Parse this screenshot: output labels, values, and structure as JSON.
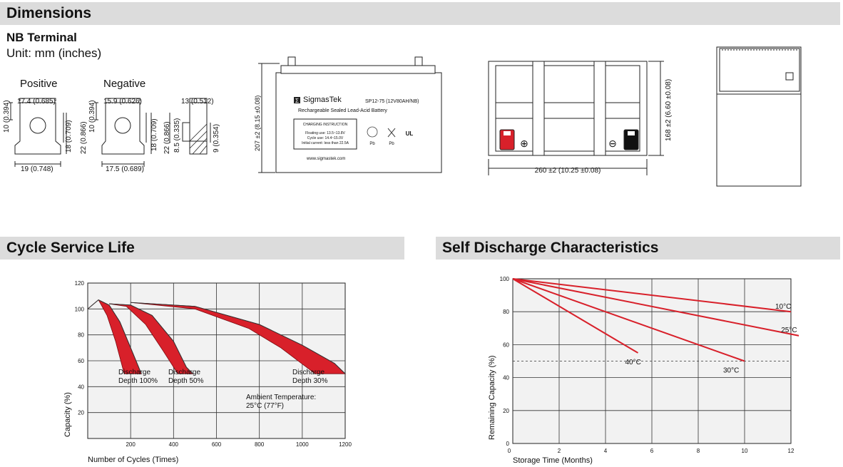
{
  "sections": {
    "dimensions": "Dimensions",
    "cycle": "Cycle Service Life",
    "self_discharge": "Self Discharge Characteristics"
  },
  "terminal": {
    "title": "NB Terminal",
    "unit": "Unit: mm (inches)",
    "positive": "Positive",
    "negative": "Negative",
    "pos_top": "17.4 (0.685)",
    "pos_left": "10 (0.394)",
    "pos_right1": "18 (0.709)",
    "pos_right2": "22 (0.866)",
    "pos_bottom": "19 (0.748)",
    "neg_top": "15.9 (0.626)",
    "neg_left": "10 (0.394)",
    "neg_right1": "18 (0.709)",
    "neg_right2": "22 (0.866)",
    "neg_right3": "8.5 (0.335)",
    "neg_bottom": "17.5 (0.689)",
    "side_top": "13 (0.512)",
    "side_right": "9 (0.354)"
  },
  "battery": {
    "brand": "SigmasTek",
    "model": "SP12-75 (12V80AH/NB)",
    "subtitle": "Rechargeable Sealed Lead-Acid Battery",
    "charging_title": "CHARGING INSTRUCTION",
    "floating": "Floating use: 13.5~13.8V",
    "cycle_use": "Cycle use: 14.4~15.0V",
    "initial": "Initial current: less than 22.5A",
    "website": "www.sigmastek.com",
    "height_label": "207 ±2 (8.15 ±0.08)",
    "top_height_label": "168 ±2 (6.60 ±0.08)",
    "width_label": "260 ±2 (10.25 ±0.08)",
    "pb1": "Pb",
    "pb2": "Pb",
    "ul": "UL",
    "plus": "⊕",
    "minus": "⊖"
  },
  "chart_data": [
    {
      "type": "area",
      "title": "Cycle Service Life",
      "xlabel": "Number of Cycles (Times)",
      "ylabel": "Capacity (%)",
      "xlim": [
        0,
        1200
      ],
      "ylim": [
        0,
        120
      ],
      "x_ticks": [
        "200",
        "400",
        "600",
        "800",
        "1000",
        "1200"
      ],
      "y_ticks": [
        "20",
        "40",
        "60",
        "80",
        "100",
        "120"
      ],
      "grid": true,
      "series": [
        {
          "name": "Discharge Depth 100%",
          "band_upper": [
            [
              0,
              100
            ],
            [
              50,
              107
            ],
            [
              100,
              103
            ],
            [
              150,
              90
            ],
            [
              200,
              70
            ],
            [
              250,
              50
            ]
          ],
          "band_lower": [
            [
              0,
              100
            ],
            [
              50,
              107
            ],
            [
              90,
              95
            ],
            [
              130,
              75
            ],
            [
              170,
              50
            ]
          ]
        },
        {
          "name": "Discharge Depth 50%",
          "band_upper": [
            [
              100,
              104
            ],
            [
              200,
              103
            ],
            [
              300,
              95
            ],
            [
              400,
              75
            ],
            [
              460,
              55
            ],
            [
              490,
              50
            ]
          ],
          "band_lower": [
            [
              100,
              104
            ],
            [
              180,
              102
            ],
            [
              270,
              88
            ],
            [
              350,
              68
            ],
            [
              420,
              50
            ]
          ]
        },
        {
          "name": "Discharge Depth 30%",
          "band_upper": [
            [
              200,
              105
            ],
            [
              500,
              102
            ],
            [
              800,
              88
            ],
            [
              1000,
              72
            ],
            [
              1150,
              58
            ],
            [
              1200,
              50
            ]
          ],
          "band_lower": [
            [
              200,
              105
            ],
            [
              500,
              100
            ],
            [
              750,
              85
            ],
            [
              900,
              70
            ],
            [
              1020,
              55
            ],
            [
              1060,
              50
            ]
          ]
        }
      ],
      "annotations": [
        {
          "line1": "Discharge",
          "line2": "Depth 100%"
        },
        {
          "line1": "Discharge",
          "line2": "Depth 50%"
        },
        {
          "line1": "Discharge",
          "line2": "Depth 30%"
        },
        {
          "line1": "Ambient Temperature:",
          "line2": "25°C (77°F)"
        }
      ]
    },
    {
      "type": "line",
      "title": "Self Discharge Characteristics",
      "xlabel": "Storage Time (Months)",
      "ylabel": "Remaining Capacity (%)",
      "xlim": [
        0,
        12
      ],
      "ylim": [
        0,
        100
      ],
      "x_ticks": [
        "0",
        "2",
        "4",
        "6",
        "8",
        "10",
        "12"
      ],
      "y_ticks": [
        "0",
        "20",
        "40",
        "60",
        "80",
        "100"
      ],
      "grid": true,
      "threshold": 50,
      "series": [
        {
          "name": "10°C",
          "x": [
            0,
            12
          ],
          "y": [
            100,
            80
          ]
        },
        {
          "name": "25°C",
          "x": [
            0,
            12.5
          ],
          "y": [
            100,
            65
          ]
        },
        {
          "name": "30°C",
          "x": [
            0,
            10
          ],
          "y": [
            100,
            50
          ]
        },
        {
          "name": "40°C",
          "x": [
            0,
            5.4
          ],
          "y": [
            100,
            55
          ]
        }
      ]
    }
  ]
}
